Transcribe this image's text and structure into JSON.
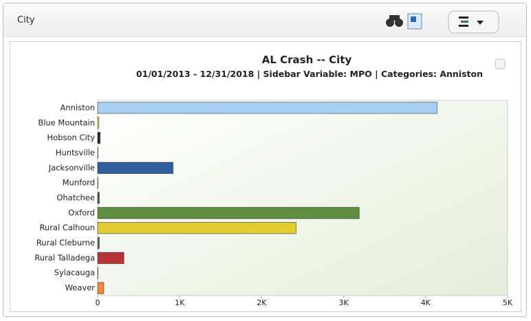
{
  "header": {
    "title": "City"
  },
  "chart_data": {
    "type": "hbar",
    "title": "AL Crash -- City",
    "subtitle": "01/01/2013 - 12/31/2018 | Sidebar Variable: MPO | Categories: Anniston",
    "categories": [
      "Anniston",
      "Blue Mountain",
      "Hobson City",
      "Huntsville",
      "Jacksonville",
      "Munford",
      "Ohatchee",
      "Oxford",
      "Rural Calhoun",
      "Rural Cleburne",
      "Rural Talladega",
      "Sylacauga",
      "Weaver"
    ],
    "values": [
      4140,
      15,
      30,
      5,
      920,
      5,
      20,
      3190,
      2420,
      20,
      320,
      5,
      75
    ],
    "colors": [
      "#a8d0f4",
      "#e6de6a",
      "#2a2a2a",
      "#e8a8b8",
      "#2f5f9f",
      "#d890a0",
      "#555555",
      "#5f8f3f",
      "#e2cc34",
      "#666666",
      "#b83434",
      "#999999",
      "#f08a3a"
    ],
    "xlim": [
      0,
      5000
    ],
    "xticks": [
      0,
      {
        "value": 1000,
        "label": "1K"
      },
      {
        "value": 2000,
        "label": "2K"
      },
      {
        "value": 3000,
        "label": "3K"
      },
      {
        "value": 4000,
        "label": "4K"
      },
      {
        "value": 5000,
        "label": "5K"
      }
    ]
  }
}
